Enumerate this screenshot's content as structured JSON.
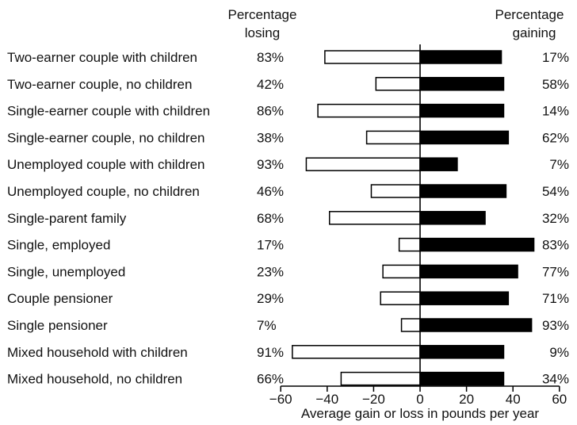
{
  "chart_data": {
    "type": "bar",
    "orientation": "horizontal",
    "header_losing": [
      "Percentage",
      "losing"
    ],
    "header_gaining": [
      "Percentage",
      "gaining"
    ],
    "xlabel": "Average gain or loss in pounds per year",
    "xlim": [
      -60,
      60
    ],
    "xticks": [
      -60,
      -40,
      -20,
      0,
      20,
      40,
      60
    ],
    "xtick_labels": [
      "−60",
      "−40",
      "−20",
      "0",
      "20",
      "40",
      "60"
    ],
    "categories": [
      "Two-earner couple with children",
      "Two-earner couple, no children",
      "Single-earner couple with children",
      "Single-earner couple, no children",
      "Unemployed couple with children",
      "Unemployed couple, no children",
      "Single-parent family",
      "Single, employed",
      "Single, unemployed",
      "Couple pensioner",
      "Single pensioner",
      "Mixed household with children",
      "Mixed household, no children"
    ],
    "series": [
      {
        "name": "Average loss",
        "fill": "white",
        "values": [
          -41,
          -19,
          -44,
          -23,
          -49,
          -21,
          -39,
          -9,
          -16,
          -17,
          -8,
          -55,
          -34
        ]
      },
      {
        "name": "Average gain",
        "fill": "black",
        "values": [
          35,
          36,
          36,
          38,
          16,
          37,
          28,
          49,
          42,
          38,
          48,
          36,
          36
        ]
      }
    ],
    "pct_losing": [
      "83%",
      "42%",
      "86%",
      "38%",
      "93%",
      "46%",
      "68%",
      "17%",
      "23%",
      "29%",
      "7%",
      "91%",
      "66%"
    ],
    "pct_gaining": [
      "17%",
      "58%",
      "14%",
      "62%",
      "7%",
      "54%",
      "32%",
      "83%",
      "77%",
      "71%",
      "93%",
      "9%",
      "34%"
    ],
    "grid": false,
    "colors": {
      "loss_fill": "#ffffff",
      "gain_fill": "#000000",
      "stroke": "#000000"
    }
  }
}
